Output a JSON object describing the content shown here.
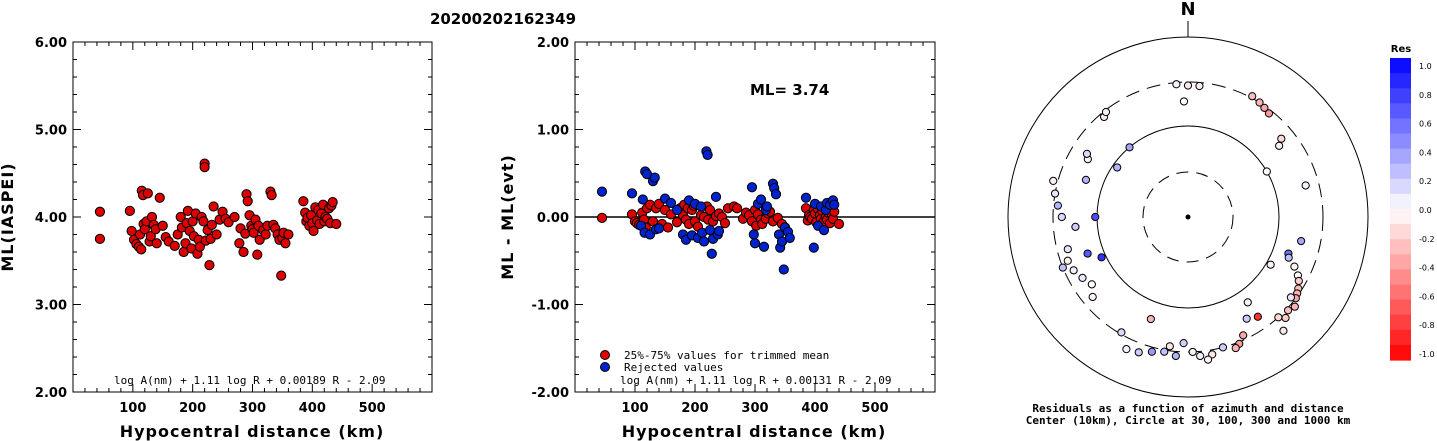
{
  "event_id": "20200202162349",
  "chart_data": [
    {
      "type": "scatter",
      "xlabel": "Hypocentral distance (km)",
      "ylabel": "ML(IASPEI)",
      "xlim": [
        0,
        600
      ],
      "ylim": [
        2.0,
        6.0
      ],
      "xticks": [
        "100",
        "200",
        "300",
        "400",
        "500"
      ],
      "yticks": [
        "2.00",
        "3.00",
        "4.00",
        "5.00",
        "6.00"
      ],
      "formula": "log A(nm) + 1.11 log R + 0.00189 R - 2.09",
      "point_color": "#dd0000",
      "points": [
        [
          45,
          4.06
        ],
        [
          45,
          3.75
        ],
        [
          95,
          4.07
        ],
        [
          98,
          3.84
        ],
        [
          102,
          3.74
        ],
        [
          106,
          3.69
        ],
        [
          110,
          3.66
        ],
        [
          112,
          3.8
        ],
        [
          114,
          3.63
        ],
        [
          115,
          4.3
        ],
        [
          117,
          4.25
        ],
        [
          118,
          3.92
        ],
        [
          120,
          3.86
        ],
        [
          123,
          3.95
        ],
        [
          125,
          4.27
        ],
        [
          128,
          3.72
        ],
        [
          130,
          3.78
        ],
        [
          132,
          4.0
        ],
        [
          135,
          3.91
        ],
        [
          138,
          3.86
        ],
        [
          140,
          3.7
        ],
        [
          145,
          4.22
        ],
        [
          150,
          3.9
        ],
        [
          155,
          3.77
        ],
        [
          160,
          3.72
        ],
        [
          170,
          3.67
        ],
        [
          175,
          3.8
        ],
        [
          180,
          4.0
        ],
        [
          182,
          3.88
        ],
        [
          185,
          3.6
        ],
        [
          188,
          3.7
        ],
        [
          190,
          3.93
        ],
        [
          192,
          4.07
        ],
        [
          195,
          3.84
        ],
        [
          198,
          3.64
        ],
        [
          200,
          3.95
        ],
        [
          202,
          3.78
        ],
        [
          205,
          4.04
        ],
        [
          208,
          3.58
        ],
        [
          210,
          3.74
        ],
        [
          212,
          3.66
        ],
        [
          215,
          4.0
        ],
        [
          218,
          3.95
        ],
        [
          220,
          4.61
        ],
        [
          220,
          4.57
        ],
        [
          222,
          3.73
        ],
        [
          225,
          3.85
        ],
        [
          228,
          3.45
        ],
        [
          230,
          3.75
        ],
        [
          232,
          3.91
        ],
        [
          235,
          4.12
        ],
        [
          240,
          3.8
        ],
        [
          245,
          3.97
        ],
        [
          250,
          4.06
        ],
        [
          255,
          3.98
        ],
        [
          260,
          3.94
        ],
        [
          270,
          4.0
        ],
        [
          278,
          3.7
        ],
        [
          280,
          3.87
        ],
        [
          285,
          3.6
        ],
        [
          288,
          3.81
        ],
        [
          290,
          4.26
        ],
        [
          292,
          4.18
        ],
        [
          295,
          4.02
        ],
        [
          298,
          3.9
        ],
        [
          300,
          3.86
        ],
        [
          302,
          3.82
        ],
        [
          305,
          3.97
        ],
        [
          308,
          3.57
        ],
        [
          310,
          3.9
        ],
        [
          312,
          3.74
        ],
        [
          318,
          3.85
        ],
        [
          322,
          3.8
        ],
        [
          325,
          3.9
        ],
        [
          330,
          4.29
        ],
        [
          332,
          4.25
        ],
        [
          335,
          3.91
        ],
        [
          338,
          3.87
        ],
        [
          342,
          3.8
        ],
        [
          345,
          3.74
        ],
        [
          348,
          3.33
        ],
        [
          350,
          3.76
        ],
        [
          352,
          3.82
        ],
        [
          355,
          3.7
        ],
        [
          360,
          3.8
        ],
        [
          385,
          4.18
        ],
        [
          388,
          4.05
        ],
        [
          390,
          3.95
        ],
        [
          392,
          3.99
        ],
        [
          395,
          3.9
        ],
        [
          398,
          4.02
        ],
        [
          400,
          3.93
        ],
        [
          402,
          3.84
        ],
        [
          405,
          4.11
        ],
        [
          408,
          3.96
        ],
        [
          410,
          4.08
        ],
        [
          412,
          3.92
        ],
        [
          415,
          4.04
        ],
        [
          418,
          4.14
        ],
        [
          420,
          3.95
        ],
        [
          422,
          4.0
        ],
        [
          425,
          3.98
        ],
        [
          428,
          4.1
        ],
        [
          430,
          3.93
        ],
        [
          432,
          4.13
        ],
        [
          434,
          4.17
        ],
        [
          440,
          3.92
        ]
      ]
    },
    {
      "type": "scatter",
      "xlabel": "Hypocentral distance (km)",
      "ylabel": "ML - ML(evt)",
      "xlim": [
        0,
        600
      ],
      "ylim": [
        -2.0,
        2.0
      ],
      "xticks": [
        "100",
        "200",
        "300",
        "400",
        "500"
      ],
      "yticks": [
        "-2.00",
        "-1.00",
        "0.00",
        "1.00",
        "2.00"
      ],
      "annotation": "ML= 3.74",
      "formula": "log A(nm) + 1.11 log R + 0.00131 R - 2.09",
      "legend": [
        {
          "label": "25%-75% values for trimmed mean",
          "color": "#dd0000"
        },
        {
          "label": "Rejected values",
          "color": "#0022cc"
        }
      ],
      "trimmed": [
        [
          45,
          -0.01
        ],
        [
          95,
          0.03
        ],
        [
          100,
          -0.05
        ],
        [
          103,
          -0.07
        ],
        [
          107,
          -0.09
        ],
        [
          112,
          0.05
        ],
        [
          115,
          -0.03
        ],
        [
          118,
          -0.12
        ],
        [
          120,
          0.1
        ],
        [
          125,
          0.14
        ],
        [
          130,
          -0.05
        ],
        [
          135,
          0.1
        ],
        [
          140,
          0.15
        ],
        [
          145,
          -0.08
        ],
        [
          150,
          0.08
        ],
        [
          155,
          -0.12
        ],
        [
          160,
          0.03
        ],
        [
          170,
          -0.06
        ],
        [
          175,
          0.1
        ],
        [
          180,
          0.02
        ],
        [
          182,
          0.14
        ],
        [
          185,
          -0.03
        ],
        [
          188,
          0.1
        ],
        [
          190,
          -0.08
        ],
        [
          195,
          0.08
        ],
        [
          198,
          0.13
        ],
        [
          200,
          -0.05
        ],
        [
          205,
          -0.11
        ],
        [
          210,
          0.02
        ],
        [
          215,
          0.0
        ],
        [
          220,
          0.12
        ],
        [
          222,
          -0.03
        ],
        [
          225,
          0.08
        ],
        [
          230,
          -0.05
        ],
        [
          235,
          0.01
        ],
        [
          240,
          0.04
        ],
        [
          245,
          0.0
        ],
        [
          250,
          -0.07
        ],
        [
          255,
          0.1
        ],
        [
          265,
          0.12
        ],
        [
          270,
          0.1
        ],
        [
          280,
          -0.02
        ],
        [
          285,
          0.05
        ],
        [
          290,
          0.02
        ],
        [
          295,
          -0.05
        ],
        [
          300,
          0.08
        ],
        [
          302,
          -0.1
        ],
        [
          305,
          0.03
        ],
        [
          310,
          -0.03
        ],
        [
          312,
          -0.08
        ],
        [
          318,
          -0.02
        ],
        [
          322,
          0.04
        ],
        [
          325,
          0.06
        ],
        [
          330,
          -0.05
        ],
        [
          338,
          -0.01
        ],
        [
          345,
          -0.08
        ],
        [
          350,
          -0.12
        ],
        [
          385,
          0.1
        ],
        [
          388,
          -0.04
        ],
        [
          390,
          0.02
        ],
        [
          392,
          0.0
        ],
        [
          395,
          -0.02
        ],
        [
          398,
          0.08
        ],
        [
          400,
          0.04
        ],
        [
          402,
          -0.06
        ],
        [
          405,
          0.09
        ],
        [
          408,
          0.02
        ],
        [
          410,
          -0.02
        ],
        [
          412,
          0.07
        ],
        [
          415,
          -0.05
        ],
        [
          418,
          0.0
        ],
        [
          420,
          -0.03
        ],
        [
          422,
          0.05
        ],
        [
          425,
          -0.07
        ],
        [
          428,
          0.03
        ],
        [
          430,
          -0.02
        ],
        [
          432,
          0.06
        ],
        [
          440,
          -0.08
        ]
      ],
      "rejected": [
        [
          45,
          0.29
        ],
        [
          95,
          0.27
        ],
        [
          110,
          -0.1
        ],
        [
          113,
          0.2
        ],
        [
          116,
          -0.18
        ],
        [
          117,
          0.52
        ],
        [
          120,
          0.49
        ],
        [
          125,
          -0.2
        ],
        [
          130,
          0.41
        ],
        [
          133,
          0.45
        ],
        [
          135,
          -0.14
        ],
        [
          140,
          -0.13
        ],
        [
          150,
          0.21
        ],
        [
          160,
          0.16
        ],
        [
          170,
          0.08
        ],
        [
          180,
          -0.2
        ],
        [
          185,
          -0.26
        ],
        [
          190,
          0.19
        ],
        [
          195,
          -0.21
        ],
        [
          200,
          0.15
        ],
        [
          205,
          -0.24
        ],
        [
          210,
          0.12
        ],
        [
          212,
          -0.18
        ],
        [
          215,
          -0.28
        ],
        [
          219,
          0.75
        ],
        [
          221,
          0.71
        ],
        [
          225,
          -0.15
        ],
        [
          228,
          -0.42
        ],
        [
          230,
          -0.25
        ],
        [
          235,
          0.23
        ],
        [
          238,
          -0.2
        ],
        [
          240,
          -0.16
        ],
        [
          295,
          0.34
        ],
        [
          298,
          -0.2
        ],
        [
          300,
          -0.3
        ],
        [
          305,
          0.15
        ],
        [
          310,
          0.2
        ],
        [
          315,
          -0.34
        ],
        [
          318,
          0.08
        ],
        [
          320,
          0.12
        ],
        [
          330,
          0.38
        ],
        [
          332,
          0.33
        ],
        [
          335,
          0.26
        ],
        [
          340,
          -0.2
        ],
        [
          342,
          -0.35
        ],
        [
          345,
          -0.28
        ],
        [
          348,
          -0.6
        ],
        [
          350,
          -0.12
        ],
        [
          355,
          -0.17
        ],
        [
          358,
          -0.24
        ],
        [
          385,
          0.22
        ],
        [
          398,
          -0.35
        ],
        [
          400,
          0.15
        ],
        [
          405,
          -0.1
        ],
        [
          410,
          0.12
        ],
        [
          415,
          -0.15
        ],
        [
          418,
          0.08
        ],
        [
          420,
          0.16
        ],
        [
          425,
          0.14
        ],
        [
          430,
          0.19
        ],
        [
          432,
          0.14
        ]
      ]
    },
    {
      "type": "scatter",
      "subtype": "polar azimuth-distance residual map",
      "north_label": "N",
      "caption_line1": "Residuals as a function of azimuth and distance",
      "caption_line2": "Center (10km), Circle at 30, 100, 300 and 1000 km",
      "colorbar": {
        "title": "Res",
        "ticks": [
          "1.0",
          "0.8",
          "0.6",
          "0.4",
          "0.2",
          "0.0",
          "-0.2",
          "-0.4",
          "-0.6",
          "-0.8",
          "-1.0"
        ],
        "positive_color": "#0000ff",
        "negative_color": "#ff0000"
      },
      "stations": [
        [
          -40,
          1.45,
          -0.1
        ],
        [
          -38,
          1.48,
          0.05
        ],
        [
          0,
          1.46,
          -0.1
        ],
        [
          -5,
          1.48,
          0.05
        ],
        [
          5,
          1.46,
          -0.08
        ],
        [
          -2,
          1.28,
          0.0
        ],
        [
          28,
          1.52,
          -0.25
        ],
        [
          32,
          1.5,
          -0.3
        ],
        [
          35,
          1.48,
          -0.35
        ],
        [
          38,
          1.46,
          -0.4
        ],
        [
          50,
          1.35,
          -0.15
        ],
        [
          52,
          1.28,
          -0.05
        ],
        [
          60,
          1.0,
          0.0
        ],
        [
          75,
          1.35,
          0.05
        ],
        [
          102,
          1.28,
          0.35
        ],
        [
          110,
          1.18,
          0.55
        ],
        [
          112,
          1.2,
          0.25
        ],
        [
          115,
          1.3,
          -0.05
        ],
        [
          118,
          1.38,
          0.0
        ],
        [
          120,
          1.42,
          -0.2
        ],
        [
          123,
          1.46,
          -0.25
        ],
        [
          125,
          1.48,
          -0.3
        ],
        [
          127,
          1.5,
          -0.35
        ],
        [
          130,
          1.55,
          -0.3
        ],
        [
          133,
          1.52,
          -0.25
        ],
        [
          128,
          1.45,
          0.1
        ],
        [
          136,
          1.56,
          -0.2
        ],
        [
          138,
          1.5,
          -0.15
        ],
        [
          140,
          1.65,
          -0.1
        ],
        [
          145,
          1.35,
          -0.8
        ],
        [
          150,
          1.3,
          0.2
        ],
        [
          145,
          1.15,
          -0.05
        ],
        [
          120,
          1.05,
          -0.05
        ],
        [
          155,
          1.45,
          -0.35
        ],
        [
          158,
          1.52,
          -0.4
        ],
        [
          160,
          1.55,
          -0.3
        ],
        [
          165,
          1.5,
          0.2
        ],
        [
          170,
          1.55,
          -0.1
        ],
        [
          172,
          1.6,
          -0.05
        ],
        [
          175,
          1.55,
          0.05
        ],
        [
          178,
          1.5,
          -0.05
        ],
        [
          182,
          1.4,
          0.2
        ],
        [
          185,
          1.55,
          0.3
        ],
        [
          190,
          1.52,
          0.25
        ],
        [
          188,
          1.45,
          -0.1
        ],
        [
          195,
          1.55,
          0.4
        ],
        [
          200,
          1.6,
          0.2
        ],
        [
          205,
          1.62,
          0.05
        ],
        [
          200,
          1.2,
          -0.3
        ],
        [
          210,
          1.48,
          0.15
        ],
        [
          230,
          1.38,
          -0.05
        ],
        [
          235,
          1.3,
          0.0
        ],
        [
          240,
          1.35,
          0.1
        ],
        [
          245,
          1.4,
          0.05
        ],
        [
          248,
          1.5,
          0.25
        ],
        [
          250,
          1.42,
          -0.05
        ],
        [
          255,
          1.38,
          0.1
        ],
        [
          245,
          1.05,
          0.8
        ],
        [
          250,
          1.18,
          0.65
        ],
        [
          270,
          1.02,
          0.7
        ],
        [
          265,
          1.25,
          0.2
        ],
        [
          270,
          1.4,
          0.15
        ],
        [
          275,
          1.45,
          0.3
        ],
        [
          280,
          1.5,
          0.1
        ],
        [
          285,
          1.55,
          -0.05
        ],
        [
          290,
          1.2,
          0.3
        ],
        [
          300,
          1.28,
          -0.05
        ],
        [
          302,
          1.32,
          0.15
        ],
        [
          305,
          0.95,
          0.3
        ],
        [
          320,
          1.0,
          0.35
        ]
      ]
    }
  ]
}
